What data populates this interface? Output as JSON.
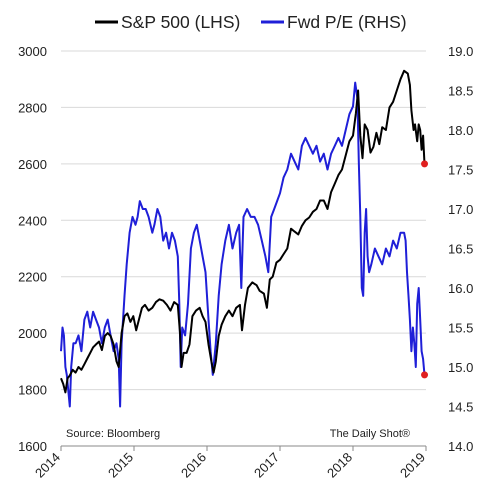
{
  "chart_data": {
    "type": "line",
    "title": "",
    "xlabel": "",
    "ylabel": "",
    "y2label": "",
    "x_ticks": [
      "2014",
      "2015",
      "2016",
      "2017",
      "2018",
      "2019"
    ],
    "xlim": [
      2014.0,
      2019.0
    ],
    "ylim": [
      1600,
      3000
    ],
    "y_ticks": [
      1600,
      1800,
      2000,
      2200,
      2400,
      2600,
      2800,
      3000
    ],
    "y_tick_labels": [
      "1600",
      "1800",
      "2000",
      "2200",
      "2400",
      "2600",
      "2800",
      "3000"
    ],
    "y2lim": [
      14.0,
      19.0
    ],
    "y2_ticks": [
      14.0,
      14.5,
      15.0,
      15.5,
      16.0,
      16.5,
      17.0,
      17.5,
      18.0,
      18.5,
      19.0
    ],
    "y2_tick_labels": [
      "14.0",
      "14.5",
      "15.0",
      "15.5",
      "16.0",
      "16.5",
      "17.0",
      "17.5",
      "18.0",
      "18.5",
      "19.0"
    ],
    "grid": "horizontal",
    "legend_position": "top-center",
    "series": [
      {
        "name": "S&P 500 (LHS)",
        "axis": "left",
        "color": "#000000",
        "points": [
          [
            2014.0,
            1840
          ],
          [
            2014.03,
            1820
          ],
          [
            2014.06,
            1790
          ],
          [
            2014.09,
            1840
          ],
          [
            2014.12,
            1850
          ],
          [
            2014.16,
            1870
          ],
          [
            2014.2,
            1860
          ],
          [
            2014.24,
            1880
          ],
          [
            2014.28,
            1870
          ],
          [
            2014.32,
            1890
          ],
          [
            2014.36,
            1910
          ],
          [
            2014.4,
            1930
          ],
          [
            2014.44,
            1950
          ],
          [
            2014.48,
            1960
          ],
          [
            2014.52,
            1970
          ],
          [
            2014.56,
            1940
          ],
          [
            2014.6,
            1990
          ],
          [
            2014.64,
            2000
          ],
          [
            2014.68,
            1990
          ],
          [
            2014.72,
            1960
          ],
          [
            2014.76,
            1900
          ],
          [
            2014.79,
            1880
          ],
          [
            2014.83,
            2000
          ],
          [
            2014.87,
            2060
          ],
          [
            2014.91,
            2070
          ],
          [
            2014.95,
            2040
          ],
          [
            2014.99,
            2060
          ],
          [
            2015.03,
            2010
          ],
          [
            2015.07,
            2050
          ],
          [
            2015.11,
            2090
          ],
          [
            2015.15,
            2100
          ],
          [
            2015.2,
            2080
          ],
          [
            2015.25,
            2090
          ],
          [
            2015.3,
            2110
          ],
          [
            2015.35,
            2120
          ],
          [
            2015.4,
            2115
          ],
          [
            2015.45,
            2100
          ],
          [
            2015.5,
            2080
          ],
          [
            2015.55,
            2110
          ],
          [
            2015.6,
            2100
          ],
          [
            2015.63,
            2000
          ],
          [
            2015.65,
            1880
          ],
          [
            2015.68,
            1930
          ],
          [
            2015.72,
            1930
          ],
          [
            2015.76,
            1960
          ],
          [
            2015.8,
            2060
          ],
          [
            2015.85,
            2080
          ],
          [
            2015.9,
            2090
          ],
          [
            2015.94,
            2060
          ],
          [
            2015.98,
            2040
          ],
          [
            2016.02,
            1960
          ],
          [
            2016.06,
            1900
          ],
          [
            2016.09,
            1860
          ],
          [
            2016.12,
            1900
          ],
          [
            2016.16,
            1990
          ],
          [
            2016.2,
            2030
          ],
          [
            2016.25,
            2060
          ],
          [
            2016.3,
            2080
          ],
          [
            2016.35,
            2060
          ],
          [
            2016.4,
            2090
          ],
          [
            2016.45,
            2100
          ],
          [
            2016.48,
            2010
          ],
          [
            2016.52,
            2100
          ],
          [
            2016.56,
            2160
          ],
          [
            2016.62,
            2180
          ],
          [
            2016.68,
            2170
          ],
          [
            2016.72,
            2150
          ],
          [
            2016.78,
            2140
          ],
          [
            2016.82,
            2090
          ],
          [
            2016.86,
            2190
          ],
          [
            2016.9,
            2200
          ],
          [
            2016.95,
            2250
          ],
          [
            2017.0,
            2260
          ],
          [
            2017.05,
            2280
          ],
          [
            2017.1,
            2300
          ],
          [
            2017.15,
            2370
          ],
          [
            2017.2,
            2360
          ],
          [
            2017.25,
            2350
          ],
          [
            2017.3,
            2380
          ],
          [
            2017.35,
            2400
          ],
          [
            2017.4,
            2410
          ],
          [
            2017.45,
            2430
          ],
          [
            2017.5,
            2440
          ],
          [
            2017.55,
            2470
          ],
          [
            2017.6,
            2470
          ],
          [
            2017.65,
            2440
          ],
          [
            2017.7,
            2500
          ],
          [
            2017.75,
            2530
          ],
          [
            2017.8,
            2560
          ],
          [
            2017.85,
            2580
          ],
          [
            2017.9,
            2630
          ],
          [
            2017.95,
            2680
          ],
          [
            2018.0,
            2700
          ],
          [
            2018.04,
            2780
          ],
          [
            2018.07,
            2860
          ],
          [
            2018.1,
            2700
          ],
          [
            2018.13,
            2620
          ],
          [
            2018.16,
            2740
          ],
          [
            2018.2,
            2720
          ],
          [
            2018.24,
            2640
          ],
          [
            2018.28,
            2660
          ],
          [
            2018.32,
            2710
          ],
          [
            2018.36,
            2670
          ],
          [
            2018.4,
            2730
          ],
          [
            2018.45,
            2720
          ],
          [
            2018.5,
            2800
          ],
          [
            2018.55,
            2820
          ],
          [
            2018.6,
            2860
          ],
          [
            2018.65,
            2900
          ],
          [
            2018.7,
            2930
          ],
          [
            2018.75,
            2920
          ],
          [
            2018.78,
            2880
          ],
          [
            2018.8,
            2790
          ],
          [
            2018.83,
            2720
          ],
          [
            2018.85,
            2740
          ],
          [
            2018.88,
            2680
          ],
          [
            2018.9,
            2740
          ],
          [
            2018.92,
            2720
          ],
          [
            2018.94,
            2650
          ],
          [
            2018.96,
            2700
          ],
          [
            2018.98,
            2600
          ]
        ]
      },
      {
        "name": "Fwd P/E (RHS)",
        "axis": "right",
        "color": "#1f1fd8",
        "points": [
          [
            2014.0,
            15.2
          ],
          [
            2014.02,
            15.5
          ],
          [
            2014.04,
            15.4
          ],
          [
            2014.06,
            15.0
          ],
          [
            2014.08,
            14.9
          ],
          [
            2014.1,
            14.7
          ],
          [
            2014.12,
            14.5
          ],
          [
            2014.14,
            15.0
          ],
          [
            2014.17,
            15.3
          ],
          [
            2014.2,
            15.3
          ],
          [
            2014.24,
            15.4
          ],
          [
            2014.28,
            15.2
          ],
          [
            2014.32,
            15.6
          ],
          [
            2014.36,
            15.7
          ],
          [
            2014.4,
            15.5
          ],
          [
            2014.44,
            15.7
          ],
          [
            2014.48,
            15.6
          ],
          [
            2014.52,
            15.5
          ],
          [
            2014.56,
            15.3
          ],
          [
            2014.6,
            15.5
          ],
          [
            2014.64,
            15.6
          ],
          [
            2014.68,
            15.4
          ],
          [
            2014.72,
            15.2
          ],
          [
            2014.76,
            15.3
          ],
          [
            2014.79,
            15.1
          ],
          [
            2014.81,
            14.5
          ],
          [
            2014.83,
            15.3
          ],
          [
            2014.87,
            15.9
          ],
          [
            2014.9,
            16.3
          ],
          [
            2014.94,
            16.7
          ],
          [
            2014.98,
            16.9
          ],
          [
            2015.02,
            16.8
          ],
          [
            2015.05,
            16.9
          ],
          [
            2015.08,
            17.1
          ],
          [
            2015.12,
            17.0
          ],
          [
            2015.16,
            17.0
          ],
          [
            2015.2,
            16.9
          ],
          [
            2015.25,
            16.7
          ],
          [
            2015.28,
            16.8
          ],
          [
            2015.32,
            17.0
          ],
          [
            2015.36,
            16.9
          ],
          [
            2015.4,
            16.6
          ],
          [
            2015.44,
            16.7
          ],
          [
            2015.48,
            16.5
          ],
          [
            2015.52,
            16.7
          ],
          [
            2015.56,
            16.6
          ],
          [
            2015.6,
            16.4
          ],
          [
            2015.62,
            15.8
          ],
          [
            2015.64,
            15.0
          ],
          [
            2015.66,
            15.5
          ],
          [
            2015.7,
            15.4
          ],
          [
            2015.74,
            15.8
          ],
          [
            2015.78,
            16.5
          ],
          [
            2015.82,
            16.7
          ],
          [
            2015.86,
            16.8
          ],
          [
            2015.9,
            16.6
          ],
          [
            2015.94,
            16.4
          ],
          [
            2015.98,
            16.2
          ],
          [
            2016.02,
            15.6
          ],
          [
            2016.05,
            15.2
          ],
          [
            2016.08,
            14.9
          ],
          [
            2016.12,
            15.3
          ],
          [
            2016.16,
            15.9
          ],
          [
            2016.2,
            16.3
          ],
          [
            2016.25,
            16.6
          ],
          [
            2016.3,
            16.8
          ],
          [
            2016.35,
            16.5
          ],
          [
            2016.4,
            16.7
          ],
          [
            2016.44,
            16.8
          ],
          [
            2016.47,
            16.0
          ],
          [
            2016.5,
            16.9
          ],
          [
            2016.55,
            17.0
          ],
          [
            2016.6,
            16.9
          ],
          [
            2016.65,
            16.9
          ],
          [
            2016.7,
            16.8
          ],
          [
            2016.75,
            16.6
          ],
          [
            2016.8,
            16.4
          ],
          [
            2016.84,
            16.2
          ],
          [
            2016.88,
            16.9
          ],
          [
            2016.92,
            17.0
          ],
          [
            2016.96,
            17.1
          ],
          [
            2017.0,
            17.2
          ],
          [
            2017.05,
            17.4
          ],
          [
            2017.1,
            17.5
          ],
          [
            2017.15,
            17.7
          ],
          [
            2017.2,
            17.6
          ],
          [
            2017.25,
            17.5
          ],
          [
            2017.3,
            17.8
          ],
          [
            2017.35,
            17.9
          ],
          [
            2017.4,
            17.8
          ],
          [
            2017.45,
            17.7
          ],
          [
            2017.5,
            17.8
          ],
          [
            2017.55,
            17.6
          ],
          [
            2017.6,
            17.7
          ],
          [
            2017.65,
            17.5
          ],
          [
            2017.7,
            17.7
          ],
          [
            2017.75,
            17.8
          ],
          [
            2017.8,
            17.9
          ],
          [
            2017.85,
            17.8
          ],
          [
            2017.9,
            18.0
          ],
          [
            2017.95,
            18.2
          ],
          [
            2018.0,
            18.3
          ],
          [
            2018.03,
            18.6
          ],
          [
            2018.06,
            18.4
          ],
          [
            2018.08,
            17.6
          ],
          [
            2018.1,
            16.9
          ],
          [
            2018.12,
            16.0
          ],
          [
            2018.14,
            15.9
          ],
          [
            2018.16,
            16.7
          ],
          [
            2018.18,
            17.0
          ],
          [
            2018.2,
            16.4
          ],
          [
            2018.22,
            16.2
          ],
          [
            2018.25,
            16.3
          ],
          [
            2018.3,
            16.5
          ],
          [
            2018.35,
            16.4
          ],
          [
            2018.4,
            16.3
          ],
          [
            2018.45,
            16.5
          ],
          [
            2018.5,
            16.4
          ],
          [
            2018.55,
            16.6
          ],
          [
            2018.6,
            16.5
          ],
          [
            2018.65,
            16.7
          ],
          [
            2018.7,
            16.7
          ],
          [
            2018.72,
            16.6
          ],
          [
            2018.74,
            16.2
          ],
          [
            2018.76,
            15.9
          ],
          [
            2018.78,
            15.6
          ],
          [
            2018.8,
            15.2
          ],
          [
            2018.82,
            15.5
          ],
          [
            2018.84,
            15.3
          ],
          [
            2018.86,
            15.0
          ],
          [
            2018.88,
            15.8
          ],
          [
            2018.9,
            16.0
          ],
          [
            2018.92,
            15.6
          ],
          [
            2018.94,
            15.2
          ],
          [
            2018.96,
            15.1
          ],
          [
            2018.98,
            14.9
          ]
        ]
      }
    ],
    "endpoints": [
      {
        "series": "S&P 500 (LHS)",
        "x": 2018.98,
        "y": 2600,
        "color": "#e02020"
      },
      {
        "series": "Fwd P/E (RHS)",
        "x": 2018.98,
        "y": 14.9,
        "color": "#e02020"
      }
    ],
    "annotations": [
      {
        "key": "source",
        "text": "Source: Bloomberg"
      },
      {
        "key": "brand",
        "text": "The Daily Shot®"
      }
    ]
  }
}
